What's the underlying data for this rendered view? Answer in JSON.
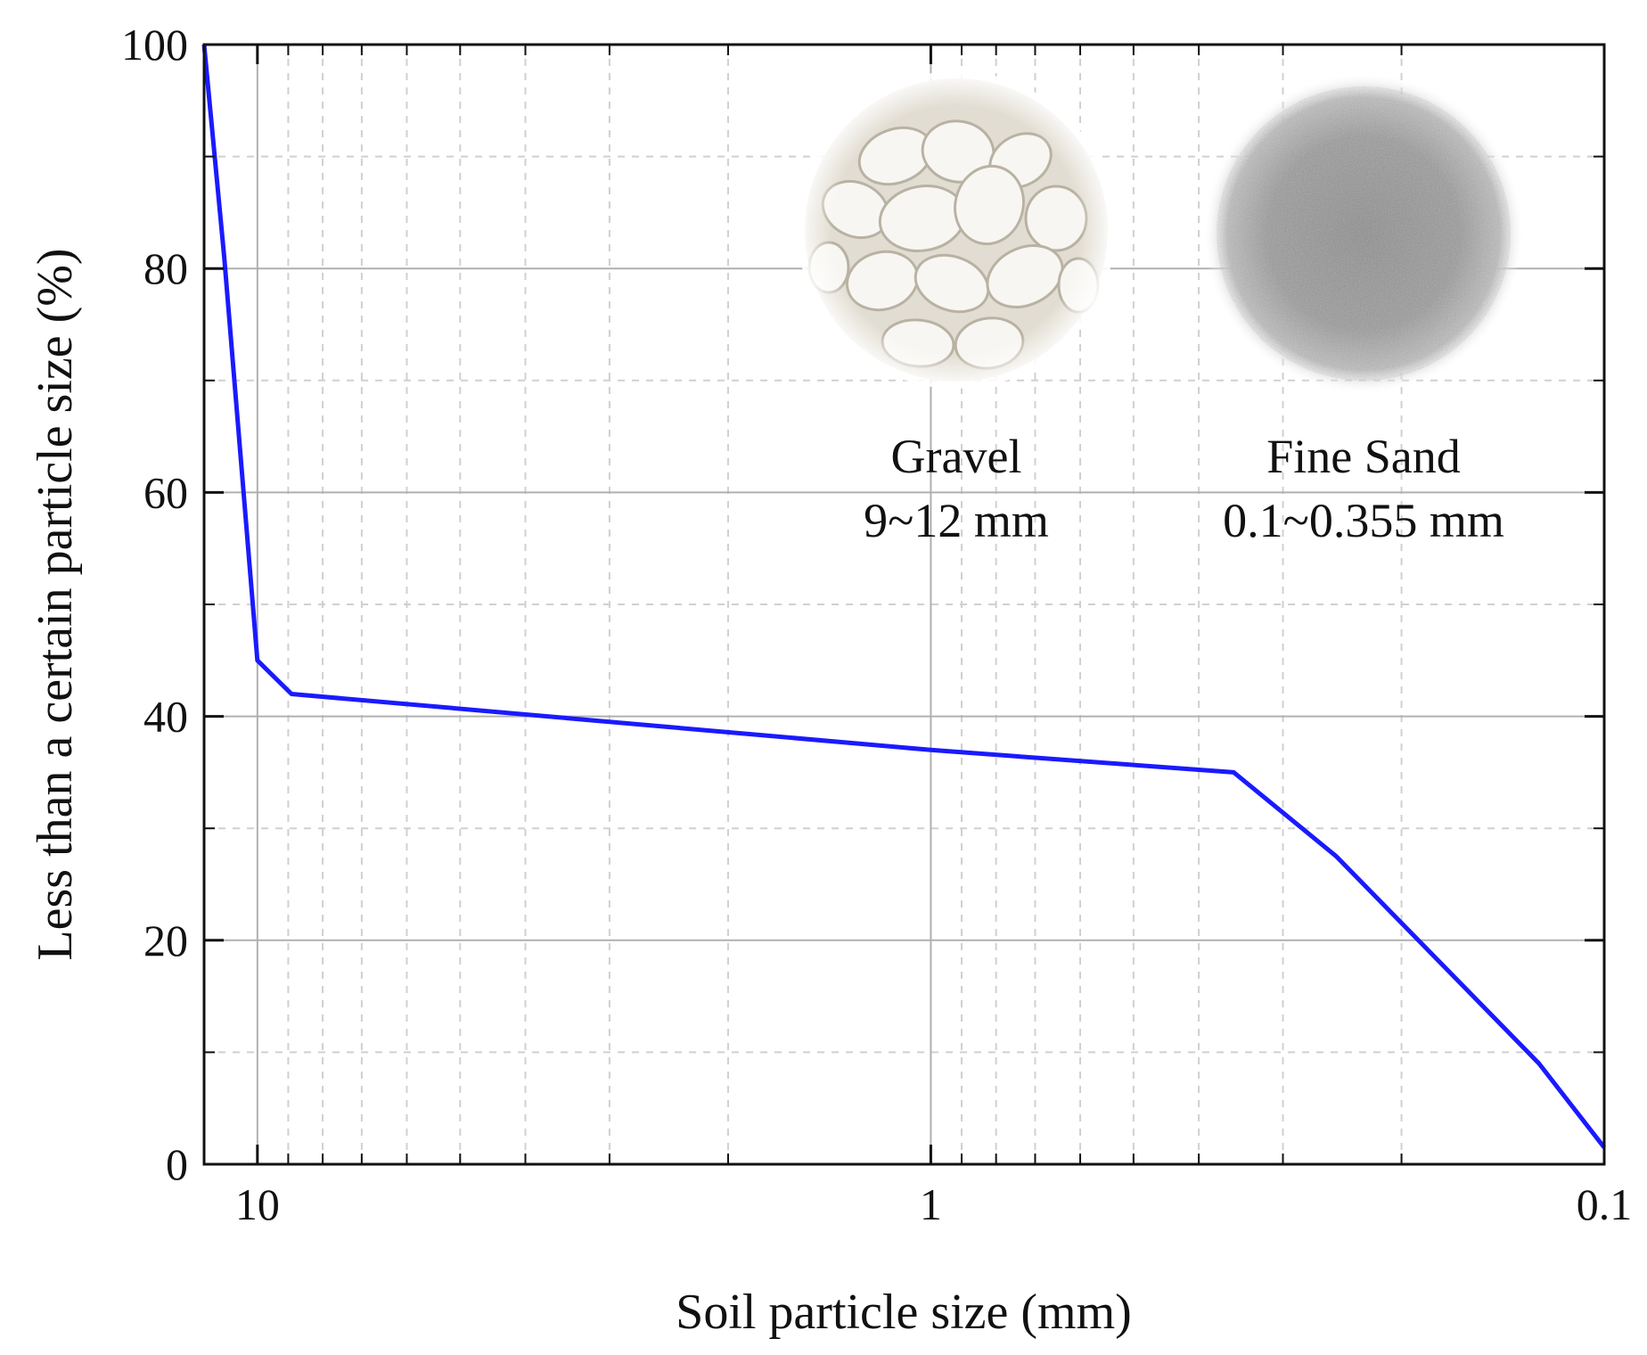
{
  "chart_data": {
    "type": "line",
    "title": "",
    "xlabel": "Soil particle size (mm)",
    "ylabel": "Less than a certain particle size (%)",
    "x_scale": "log",
    "x_reversed": true,
    "xlim": [
      12,
      0.1
    ],
    "ylim": [
      0,
      100
    ],
    "x_ticks": [
      10,
      1,
      0.1
    ],
    "x_tick_labels": [
      "10",
      "1",
      "0.1"
    ],
    "y_ticks": [
      0,
      20,
      40,
      60,
      80,
      100
    ],
    "y_tick_labels": [
      "0",
      "20",
      "40",
      "60",
      "80",
      "100"
    ],
    "grid": "major solid, minor dashed",
    "series": [
      {
        "color": "#1a1aff",
        "x": [
          12,
          11.2,
          10.0,
          8.9,
          1.0,
          0.355,
          0.25,
          0.125,
          0.1
        ],
        "y": [
          100,
          81,
          45,
          42,
          37,
          35,
          27.5,
          9,
          1.5
        ]
      }
    ],
    "annotations": [
      {
        "name": "gravel",
        "title": "Gravel",
        "range": "9~12 mm"
      },
      {
        "name": "fine-sand",
        "title": "Fine Sand",
        "range": "0.1~0.355 mm"
      }
    ]
  }
}
